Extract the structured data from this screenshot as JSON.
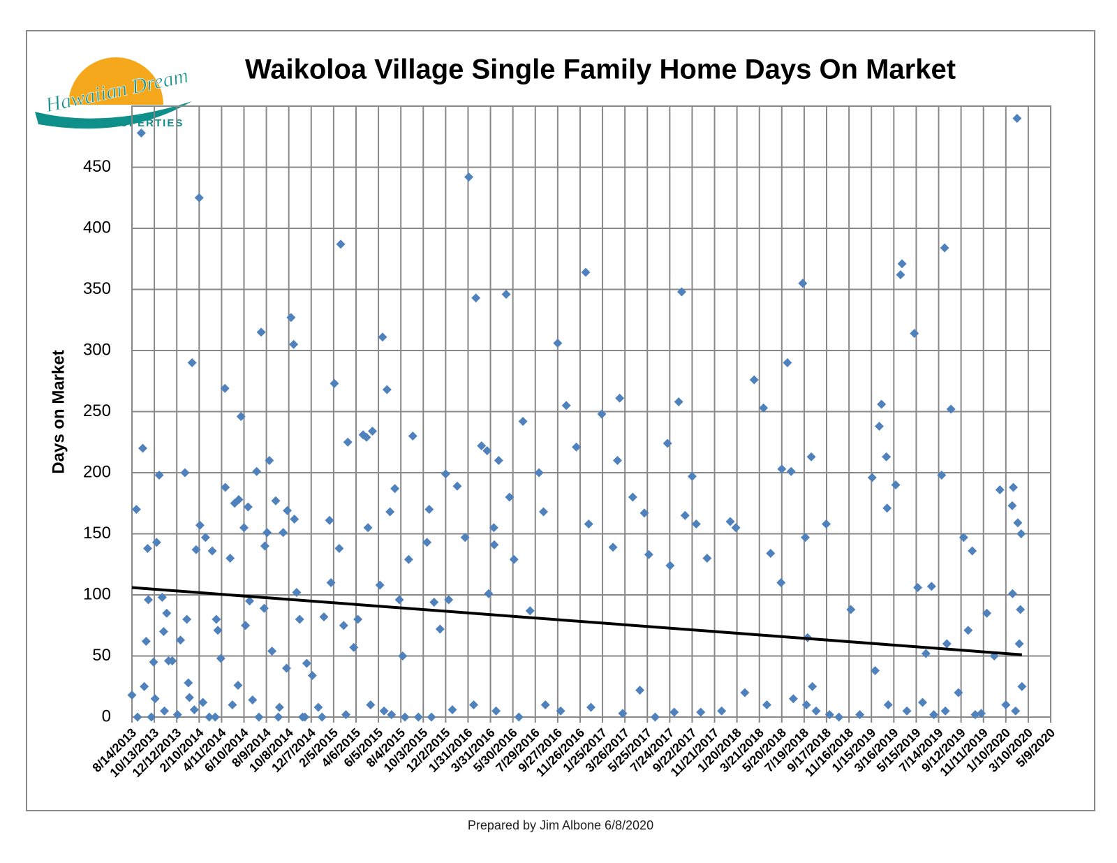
{
  "logo": {
    "name": "Hawaiian Dream",
    "tagline": "PROPERTIES"
  },
  "chart_data": {
    "type": "scatter",
    "title": "Waikoloa Village Single Family Home  Days On Market",
    "y_label": "Days on Market",
    "footer": "Prepared by Jim Albone 6/8/2020",
    "color": "#4f81bd",
    "grid": true,
    "xlim": [
      "8/14/2013",
      "5/9/2020"
    ],
    "xticks": [
      "8/14/2013",
      "10/13/2013",
      "12/12/2013",
      "2/10/2014",
      "4/11/2014",
      "6/10/2014",
      "8/9/2014",
      "10/8/2014",
      "12/7/2014",
      "2/5/2015",
      "4/6/2015",
      "6/5/2015",
      "8/4/2015",
      "10/3/2015",
      "12/2/2015",
      "1/31/2016",
      "3/31/2016",
      "5/30/2016",
      "7/29/2016",
      "9/27/2016",
      "11/26/2016",
      "1/25/2017",
      "3/26/2017",
      "5/25/2017",
      "7/24/2017",
      "9/22/2017",
      "11/21/2017",
      "1/20/2018",
      "3/21/2018",
      "5/20/2018",
      "7/19/2018",
      "9/17/2018",
      "11/16/2018",
      "1/15/2019",
      "3/16/2019",
      "5/15/2019",
      "7/14/2019",
      "9/12/2019",
      "11/11/2019",
      "1/10/2020",
      "3/10/2020",
      "5/9/2020"
    ],
    "ylim": [
      0,
      500
    ],
    "yticks": [
      0,
      50,
      100,
      150,
      200,
      250,
      300,
      350,
      400,
      450
    ],
    "x": [
      "8/14/2013",
      "8/26/2013",
      "8/29/2013",
      "9/8/2013",
      "9/12/2013",
      "9/16/2013",
      "9/21/2013",
      "9/25/2013",
      "9/27/2013",
      "10/11/2013",
      "10/15/2013",
      "10/19/2013",
      "10/26/2013",
      "11/3/2013",
      "11/7/2013",
      "11/9/2013",
      "11/15/2013",
      "11/20/2013",
      "11/30/2013",
      "12/14/2013",
      "12/22/2013",
      "1/3/2014",
      "1/8/2014",
      "1/12/2014",
      "1/22/2014",
      "1/28/2014",
      "2/2/2014",
      "2/10/2014",
      "2/12/2014",
      "2/20/2014",
      "2/27/2014",
      "3/9/2014",
      "3/17/2014",
      "3/28/2014",
      "4/1/2014",
      "4/9/2014",
      "4/20/2014",
      "4/21/2014",
      "5/4/2014",
      "5/10/2014",
      "5/16/2014",
      "5/27/2014",
      "6/2/2014",
      "6/10/2014",
      "6/14/2014",
      "6/21/2014",
      "6/25/2014",
      "7/3/2014",
      "7/14/2014",
      "7/26/2014",
      "8/3/2014",
      "8/5/2014",
      "8/11/2014",
      "8/17/2014",
      "8/24/2014",
      "9/3/2014",
      "9/13/2014",
      "9/23/2014",
      "10/2/2014",
      "10/4/2014",
      "10/14/2014",
      "10/21/2014",
      "10/23/2014",
      "10/29/2014",
      "11/6/2014",
      "11/14/2014",
      "11/25/2014",
      "12/10/2014",
      "12/26/2014",
      "1/10/2015",
      "1/25/2015",
      "1/29/2015",
      "2/7/2015",
      "2/20/2015",
      "2/24/2015",
      "3/4/2015",
      "3/15/2015",
      "3/31/2015",
      "4/11/2015",
      "4/25/2015",
      "5/4/2015",
      "5/8/2015",
      "5/20/2015",
      "6/9/2015",
      "6/16/2015",
      "6/28/2015",
      "7/6/2015",
      "7/19/2015",
      "7/31/2015",
      "8/9/2015",
      "8/25/2015",
      "9/5/2015",
      "9/20/2015",
      "10/13/2015",
      "10/19/2015",
      "11/1/2015",
      "11/17/2015",
      "12/2/2015",
      "12/10/2015",
      "1/2/2016",
      "1/23/2016",
      "2/2/2016",
      "2/21/2016",
      "3/7/2016",
      "3/22/2016",
      "3/26/2016",
      "4/9/2016",
      "4/22/2016",
      "5/12/2016",
      "5/21/2016",
      "6/2/2016",
      "6/26/2016",
      "7/15/2016",
      "8/8/2016",
      "8/20/2016",
      "9/27/2016",
      "10/20/2016",
      "11/16/2016",
      "12/11/2016",
      "12/19/2016",
      "1/23/2017",
      "2/22/2017",
      "3/6/2017",
      "3/12/2017",
      "4/16/2017",
      "5/17/2017",
      "5/29/2017",
      "7/18/2017",
      "7/25/2017",
      "8/17/2017",
      "8/25/2017",
      "9/3/2017",
      "9/22/2017",
      "10/3/2017",
      "11/1/2017",
      "1/2/2018",
      "1/17/2018",
      "3/7/2018",
      "4/1/2018",
      "4/20/2018",
      "5/20/2018",
      "6/4/2018",
      "6/14/2018",
      "7/15/2018",
      "7/22/2018",
      "8/7/2018",
      "9/16/2018",
      "11/21/2018",
      "1/17/2019",
      "2/5/2019",
      "2/11/2019",
      "2/24/2019",
      "2/26/2019",
      "3/21/2019",
      "4/3/2019",
      "4/7/2019",
      "5/10/2019",
      "5/19/2019",
      "6/25/2019",
      "7/22/2019",
      "7/30/2019",
      "8/16/2019",
      "9/19/2019",
      "10/12/2019",
      "11/20/2019",
      "12/25/2019",
      "1/30/2020",
      "1/27/2020",
      "2/9/2020",
      "2/11/2020",
      "2/20/2020",
      "2/18/2020",
      "1/28/2020",
      "10/5/2013",
      "1/15/2014",
      "3/25/2014",
      "5/25/2014",
      "7/20/2014",
      "9/10/2014",
      "11/20/2014",
      "1/5/2015",
      "3/10/2015",
      "5/15/2015",
      "6/20/2015",
      "7/10/2015",
      "8/15/2015",
      "10/25/2015",
      "12/20/2015",
      "2/15/2016",
      "4/15/2016",
      "6/15/2016",
      "8/25/2016",
      "10/5/2016",
      "12/25/2016",
      "3/20/2017",
      "5/5/2017",
      "6/15/2017",
      "8/5/2017",
      "10/15/2017",
      "12/10/2017",
      "2/10/2018",
      "4/10/2018",
      "6/20/2018",
      "7/25/2018",
      "8/10/2018",
      "8/20/2018",
      "9/25/2018",
      "10/20/2018",
      "12/15/2018",
      "1/25/2019",
      "3/1/2019",
      "4/20/2019",
      "6/1/2019",
      "7/1/2019",
      "8/1/2019",
      "9/5/2019",
      "10/20/2019",
      "11/5/2019",
      "12/10/2019",
      "1/10/2020",
      "2/5/2020",
      "2/22/2020",
      "2/15/2020",
      "4/10/2016",
      "5/18/2018",
      "7/28/2018",
      "6/10/2019",
      "8/5/2019",
      "10/1/2019"
    ],
    "values": [
      18,
      170,
      0,
      478,
      220,
      25,
      62,
      138,
      96,
      45,
      15,
      143,
      198,
      98,
      70,
      5,
      85,
      46,
      46,
      2,
      63,
      200,
      80,
      28,
      290,
      6,
      137,
      425,
      157,
      12,
      147,
      0,
      136,
      80,
      71,
      48,
      269,
      188,
      130,
      10,
      175,
      178,
      246,
      155,
      75,
      172,
      95,
      14,
      201,
      315,
      89,
      140,
      151,
      210,
      54,
      177,
      8,
      151,
      40,
      169,
      327,
      305,
      162,
      102,
      80,
      0,
      44,
      34,
      8,
      82,
      161,
      110,
      273,
      138,
      387,
      75,
      225,
      57,
      80,
      231,
      229,
      155,
      234,
      108,
      311,
      268,
      168,
      187,
      96,
      50,
      129,
      230,
      0,
      143,
      170,
      94,
      72,
      199,
      96,
      189,
      147,
      442,
      343,
      222,
      218,
      101,
      155,
      210,
      346,
      180,
      129,
      242,
      87,
      200,
      168,
      306,
      255,
      221,
      364,
      158,
      248,
      139,
      210,
      261,
      180,
      167,
      133,
      224,
      124,
      258,
      348,
      165,
      197,
      158,
      130,
      160,
      155,
      276,
      253,
      134,
      203,
      290,
      201,
      355,
      147,
      213,
      158,
      88,
      196,
      238,
      256,
      213,
      171,
      190,
      362,
      371,
      314,
      106,
      107,
      198,
      384,
      252,
      147,
      136,
      85,
      186,
      188,
      173,
      490,
      159,
      150,
      88,
      101,
      0,
      16,
      0,
      26,
      0,
      0,
      0,
      0,
      2,
      10,
      5,
      2,
      0,
      0,
      6,
      10,
      5,
      0,
      10,
      5,
      8,
      3,
      22,
      0,
      4,
      4,
      5,
      20,
      10,
      15,
      10,
      25,
      5,
      2,
      0,
      2,
      38,
      10,
      5,
      12,
      2,
      5,
      20,
      2,
      3,
      50,
      10,
      5,
      25,
      60,
      141,
      110,
      65,
      52,
      60,
      71
    ],
    "trendline": {
      "color": "#000000",
      "x": [
        "8/14/2013",
        "2/22/2020"
      ],
      "values": [
        106,
        51
      ]
    }
  }
}
